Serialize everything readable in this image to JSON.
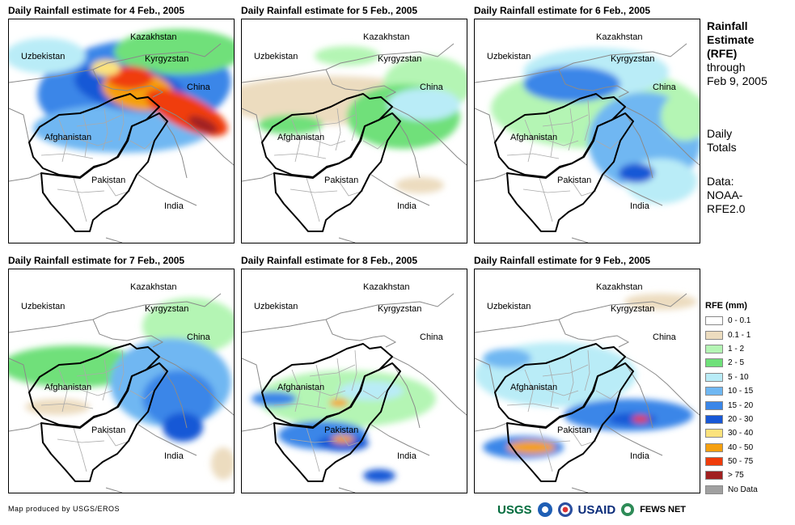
{
  "panels": [
    {
      "title": "Daily Rainfall estimate for 4 Feb., 2005",
      "scene": 0
    },
    {
      "title": "Daily Rainfall estimate for 5 Feb., 2005",
      "scene": 1
    },
    {
      "title": "Daily Rainfall estimate for 6 Feb., 2005",
      "scene": 2
    },
    {
      "title": "Daily Rainfall estimate for 7 Feb., 2005",
      "scene": 3
    },
    {
      "title": "Daily Rainfall estimate for 8 Feb., 2005",
      "scene": 4
    },
    {
      "title": "Daily Rainfall estimate for 9 Feb., 2005",
      "scene": 5
    }
  ],
  "map_labels": {
    "kazakhstan": "Kazakhstan",
    "uzbekistan": "Uzbekistan",
    "kyrgyzstan": "Kyrgyzstan",
    "china": "China",
    "afghanistan": "Afghanistan",
    "pakistan": "Pakistan",
    "india": "India"
  },
  "sidebar": {
    "title_line1": "Rainfall",
    "title_line2": "Estimate",
    "title_line3": "(RFE)",
    "through": "through",
    "date": "Feb 9, 2005",
    "daily1": "Daily",
    "daily2": "Totals",
    "data1": "Data:",
    "data2": "NOAA-",
    "data3": "RFE2.0"
  },
  "legend": {
    "title": "RFE (mm)",
    "items": [
      {
        "label": "0 - 0.1",
        "color": "#ffffff"
      },
      {
        "label": "0.1 - 1",
        "color": "#ecdcbf"
      },
      {
        "label": "1 - 2",
        "color": "#b4f5b4"
      },
      {
        "label": "2 - 5",
        "color": "#6fe07a"
      },
      {
        "label": "5 - 10",
        "color": "#b9ecf7"
      },
      {
        "label": "10 - 15",
        "color": "#6fb7f2"
      },
      {
        "label": "15 - 20",
        "color": "#3a86e8"
      },
      {
        "label": "20 - 30",
        "color": "#1858d6"
      },
      {
        "label": "30 - 40",
        "color": "#fbe27c"
      },
      {
        "label": "40 - 50",
        "color": "#f5a00f"
      },
      {
        "label": "50 - 75",
        "color": "#f03c0a"
      },
      {
        "label": "> 75",
        "color": "#a02020"
      },
      {
        "label": "No Data",
        "color": "#a0a0a0"
      }
    ]
  },
  "credit": "Map produced by USGS/EROS",
  "logos": {
    "usgs": "USGS",
    "usaid": "USAID",
    "fews": "FEWS NET"
  }
}
